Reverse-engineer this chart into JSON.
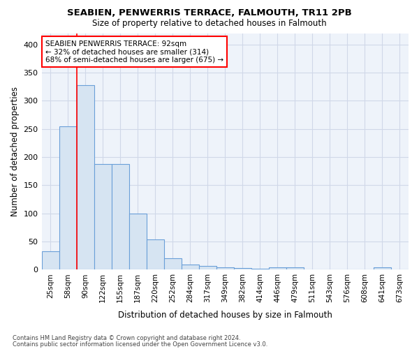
{
  "title1": "SEABIEN, PENWERRIS TERRACE, FALMOUTH, TR11 2PB",
  "title2": "Size of property relative to detached houses in Falmouth",
  "xlabel": "Distribution of detached houses by size in Falmouth",
  "ylabel": "Number of detached properties",
  "bar_labels": [
    "25sqm",
    "58sqm",
    "90sqm",
    "122sqm",
    "155sqm",
    "187sqm",
    "220sqm",
    "252sqm",
    "284sqm",
    "317sqm",
    "349sqm",
    "382sqm",
    "414sqm",
    "446sqm",
    "479sqm",
    "511sqm",
    "543sqm",
    "576sqm",
    "608sqm",
    "641sqm",
    "673sqm"
  ],
  "bar_values": [
    33,
    255,
    328,
    188,
    188,
    100,
    54,
    20,
    9,
    7,
    4,
    3,
    2,
    4,
    4,
    0,
    0,
    0,
    0,
    4,
    0
  ],
  "bar_color": "#d6e4f2",
  "bar_edge_color": "#6a9fd8",
  "grid_color": "#d0d8e8",
  "bg_color": "#eef3fa",
  "red_line_x": 2.0,
  "annotation_title": "SEABIEN PENWERRIS TERRACE: 92sqm",
  "annotation_line1": "← 32% of detached houses are smaller (314)",
  "annotation_line2": "68% of semi-detached houses are larger (675) →",
  "footnote1": "Contains HM Land Registry data © Crown copyright and database right 2024.",
  "footnote2": "Contains public sector information licensed under the Open Government Licence v3.0.",
  "ylim": [
    0,
    420
  ],
  "yticks": [
    0,
    50,
    100,
    150,
    200,
    250,
    300,
    350,
    400
  ]
}
